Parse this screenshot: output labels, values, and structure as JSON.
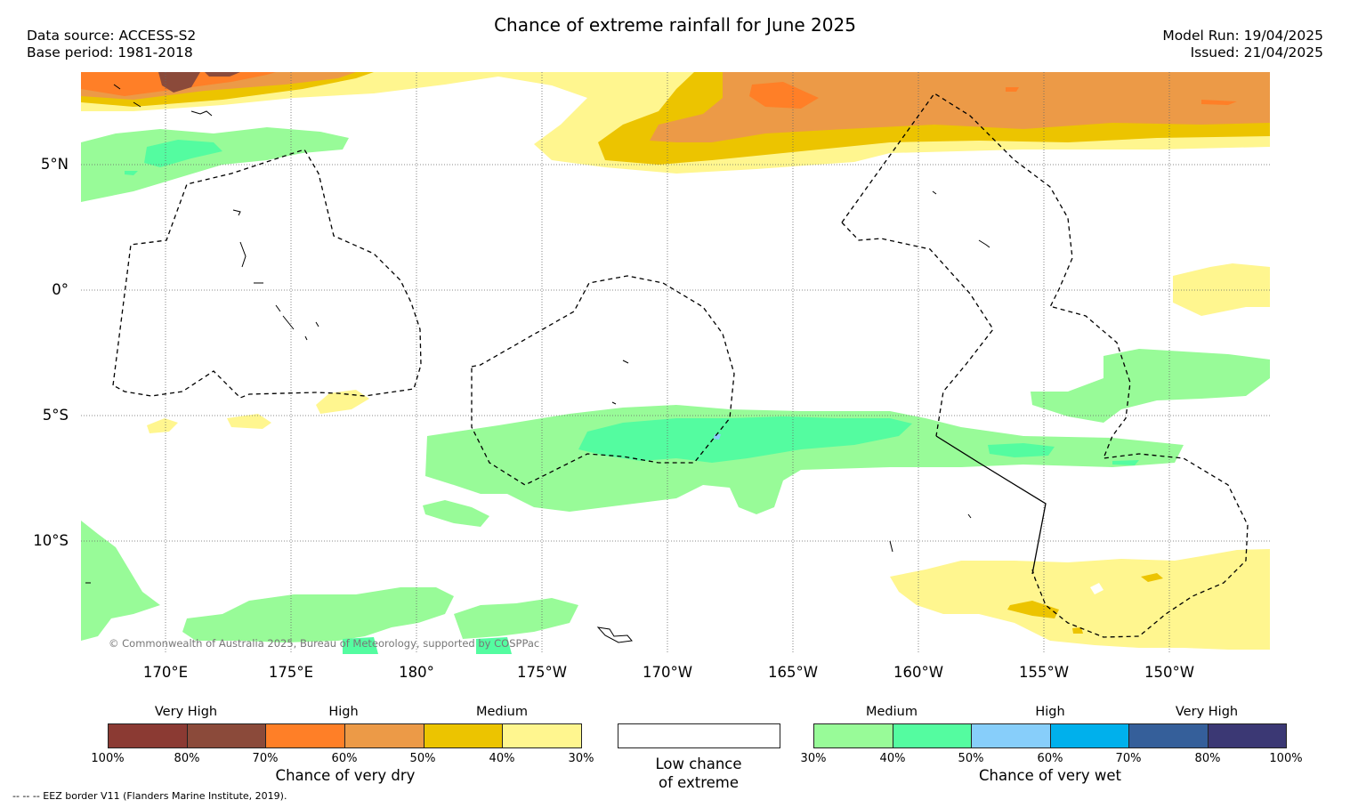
{
  "header": {
    "title": "Chance of extreme rainfall for June 2025",
    "data_source": "Data source: ACCESS-S2",
    "base_period": "Base period: 1981-2018",
    "model_run": "Model Run: 19/04/2025",
    "issued": "Issued: 21/04/2025"
  },
  "map": {
    "lat_labels": [
      "5°N",
      "0°",
      "5°S",
      "10°S"
    ],
    "lon_labels": [
      "170°E",
      "175°E",
      "180°",
      "175°W",
      "170°W",
      "165°W",
      "160°W",
      "155°W",
      "150°W"
    ],
    "copyright": "© Commonwealth of Australia 2025, Bureau of Meteorology, supported by COSPPac"
  },
  "legend": {
    "dry": {
      "title": "Chance of very dry",
      "categories": [
        "Very High",
        "High",
        "Medium"
      ],
      "ticks": [
        "100%",
        "80%",
        "70%",
        "60%",
        "50%",
        "40%",
        "30%"
      ],
      "colors": [
        "#8b3a33",
        "#8b4a3a",
        "#ff7f27",
        "#ec9a47",
        "#ecc400",
        "#fff68f"
      ]
    },
    "low": {
      "title_line1": "Low chance",
      "title_line2": "of extreme",
      "color": "#ffffff"
    },
    "wet": {
      "title": "Chance of very wet",
      "categories": [
        "Medium",
        "High",
        "Very High"
      ],
      "ticks": [
        "30%",
        "40%",
        "50%",
        "60%",
        "70%",
        "80%",
        "100%"
      ],
      "colors": [
        "#98fb98",
        "#54fca0",
        "#87cefa",
        "#00b0ec",
        "#355f9a",
        "#3b3874"
      ]
    }
  },
  "footnote": "--  --  -- EEZ border V11 (Flanders Marine Institute, 2019)."
}
